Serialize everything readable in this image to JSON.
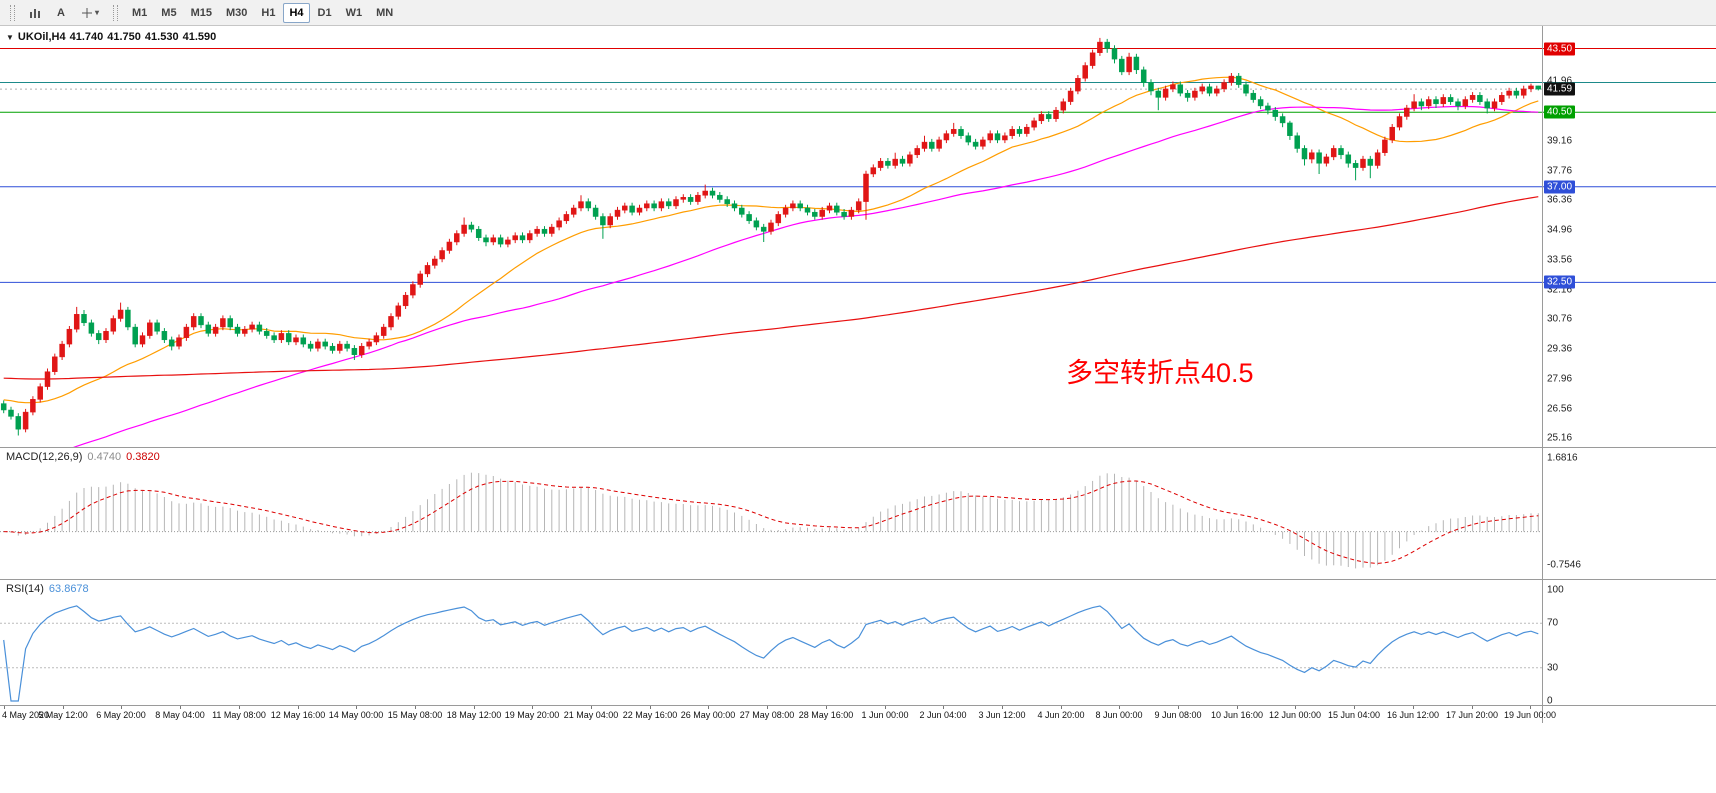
{
  "toolbar": {
    "text_tool_label": "A",
    "timeframes": [
      "M1",
      "M5",
      "M15",
      "M30",
      "H1",
      "H4",
      "D1",
      "W1",
      "MN"
    ],
    "active_timeframe": "H4"
  },
  "quote": {
    "symbol": "UKOil,H4",
    "open": "41.740",
    "high": "41.750",
    "low": "41.530",
    "close": "41.590"
  },
  "annotation": {
    "text": "多空转折点40.5",
    "color": "#ff0000"
  },
  "indicators": {
    "macd": {
      "label": "MACD(12,26,9)",
      "main_value": "0.4740",
      "signal_value": "0.3820",
      "axis_labels": [
        "1.6816",
        "-0.7546"
      ]
    },
    "rsi": {
      "label": "RSI(14)",
      "value": "63.8678",
      "axis_labels": [
        "100",
        "70",
        "30",
        "0"
      ],
      "levels": [
        70,
        30
      ]
    }
  },
  "price_axis": {
    "labels": [
      "41.96",
      "40.56",
      "39.16",
      "37.76",
      "36.36",
      "34.96",
      "33.56",
      "32.16",
      "30.76",
      "29.36",
      "27.96",
      "26.56",
      "25.16"
    ],
    "current_price_tag": {
      "text": "41.59",
      "bg": "#111111"
    }
  },
  "hlines": [
    {
      "price": 43.5,
      "color": "#e00000",
      "tag": "43.50"
    },
    {
      "price": 41.9,
      "color": "#1d8a8a",
      "tag": ""
    },
    {
      "price": 40.5,
      "color": "#00a000",
      "tag": "40.50"
    },
    {
      "price": 37.0,
      "color": "#2f4fd8",
      "tag": "37.00"
    },
    {
      "price": 32.5,
      "color": "#2f4fd8",
      "tag": "32.50"
    }
  ],
  "time_axis": {
    "labels": [
      "4 May 2020",
      "5 May 12:00",
      "6 May 20:00",
      "8 May 04:00",
      "11 May 08:00",
      "12 May 16:00",
      "14 May 00:00",
      "15 May 08:00",
      "18 May 12:00",
      "19 May 20:00",
      "21 May 04:00",
      "22 May 16:00",
      "26 May 00:00",
      "27 May 08:00",
      "28 May 16:00",
      "1 Jun 00:00",
      "2 Jun 04:00",
      "3 Jun 12:00",
      "4 Jun 20:00",
      "8 Jun 00:00",
      "9 Jun 08:00",
      "10 Jun 16:00",
      "12 Jun 00:00",
      "15 Jun 04:00",
      "16 Jun 12:00",
      "17 Jun 20:00",
      "19 Jun 00:00"
    ]
  },
  "chart_data": {
    "type": "candlestick",
    "symbol": "UKOil",
    "timeframe": "H4",
    "price_range": [
      24.9,
      43.9
    ],
    "colors": {
      "up": "#e01616",
      "down": "#00a050"
    },
    "moving_averages": [
      {
        "name": "fast-orange",
        "period": 21,
        "seed": 27,
        "color": "#ff9d00"
      },
      {
        "name": "mid-magenta",
        "period": 55,
        "seed": 24,
        "color": "#ff00ff"
      },
      {
        "name": "slow-red",
        "period": 200,
        "seed": 28,
        "color": "#e81010"
      }
    ],
    "macd": {
      "fast": 12,
      "slow": 26,
      "signal": 9,
      "range": [
        -0.9,
        1.75
      ]
    },
    "rsi": {
      "period": 14,
      "range": [
        0,
        100
      ]
    },
    "candles": [
      [
        26.8,
        26.95,
        26.35,
        26.5
      ],
      [
        26.5,
        26.65,
        26.05,
        26.2
      ],
      [
        26.2,
        26.35,
        25.3,
        25.6
      ],
      [
        25.6,
        26.55,
        25.45,
        26.4
      ],
      [
        26.4,
        27.15,
        26.25,
        27.0
      ],
      [
        27.0,
        27.75,
        26.85,
        27.6
      ],
      [
        27.6,
        28.45,
        27.45,
        28.3
      ],
      [
        28.3,
        29.15,
        28.15,
        29.0
      ],
      [
        29.0,
        29.75,
        28.85,
        29.6
      ],
      [
        29.6,
        30.45,
        29.45,
        30.3
      ],
      [
        30.3,
        31.35,
        30.15,
        31.0
      ],
      [
        31.0,
        31.2,
        30.45,
        30.6
      ],
      [
        30.6,
        30.75,
        29.95,
        30.1
      ],
      [
        30.1,
        30.25,
        29.6,
        29.8
      ],
      [
        29.8,
        30.35,
        29.65,
        30.2
      ],
      [
        30.2,
        30.95,
        30.05,
        30.8
      ],
      [
        30.8,
        31.55,
        30.65,
        31.2
      ],
      [
        31.2,
        31.35,
        30.25,
        30.4
      ],
      [
        30.4,
        30.55,
        29.45,
        29.6
      ],
      [
        29.6,
        30.15,
        29.45,
        30.0
      ],
      [
        30.0,
        30.75,
        29.85,
        30.6
      ],
      [
        30.6,
        30.75,
        30.05,
        30.2
      ],
      [
        30.2,
        30.35,
        29.65,
        29.8
      ],
      [
        29.8,
        29.95,
        29.3,
        29.5
      ],
      [
        29.5,
        30.05,
        29.35,
        29.9
      ],
      [
        29.9,
        30.55,
        29.75,
        30.4
      ],
      [
        30.4,
        31.05,
        30.25,
        30.9
      ],
      [
        30.9,
        31.05,
        30.35,
        30.5
      ],
      [
        30.5,
        30.65,
        29.95,
        30.1
      ],
      [
        30.1,
        30.55,
        29.95,
        30.4
      ],
      [
        30.4,
        30.95,
        30.25,
        30.8
      ],
      [
        30.8,
        30.95,
        30.25,
        30.4
      ],
      [
        30.4,
        30.55,
        29.95,
        30.1
      ],
      [
        30.1,
        30.45,
        29.95,
        30.3
      ],
      [
        30.3,
        30.65,
        30.15,
        30.5
      ],
      [
        30.5,
        30.65,
        30.05,
        30.2
      ],
      [
        30.2,
        30.35,
        29.85,
        30.0
      ],
      [
        30.0,
        30.15,
        29.65,
        29.8
      ],
      [
        29.8,
        30.25,
        29.65,
        30.1
      ],
      [
        30.1,
        30.25,
        29.55,
        29.7
      ],
      [
        29.7,
        30.05,
        29.55,
        29.9
      ],
      [
        29.9,
        30.05,
        29.45,
        29.6
      ],
      [
        29.6,
        29.75,
        29.25,
        29.4
      ],
      [
        29.4,
        29.85,
        29.25,
        29.7
      ],
      [
        29.7,
        29.85,
        29.35,
        29.5
      ],
      [
        29.5,
        29.65,
        29.15,
        29.3
      ],
      [
        29.3,
        29.75,
        29.15,
        29.6
      ],
      [
        29.6,
        29.75,
        29.25,
        29.4
      ],
      [
        29.4,
        29.55,
        28.85,
        29.1
      ],
      [
        29.1,
        29.65,
        28.95,
        29.5
      ],
      [
        29.5,
        29.85,
        29.35,
        29.7
      ],
      [
        29.7,
        30.15,
        29.55,
        30.0
      ],
      [
        30.0,
        30.55,
        29.85,
        30.4
      ],
      [
        30.4,
        31.05,
        30.25,
        30.9
      ],
      [
        30.9,
        31.55,
        30.75,
        31.4
      ],
      [
        31.4,
        32.05,
        31.25,
        31.9
      ],
      [
        31.9,
        32.55,
        31.75,
        32.4
      ],
      [
        32.4,
        33.05,
        32.25,
        32.9
      ],
      [
        32.9,
        33.45,
        32.75,
        33.3
      ],
      [
        33.3,
        33.75,
        33.15,
        33.6
      ],
      [
        33.6,
        34.15,
        33.45,
        34.0
      ],
      [
        34.0,
        34.55,
        33.85,
        34.4
      ],
      [
        34.4,
        34.95,
        34.25,
        34.8
      ],
      [
        34.8,
        35.55,
        34.65,
        35.2
      ],
      [
        35.2,
        35.35,
        34.85,
        35.0
      ],
      [
        35.0,
        35.15,
        34.45,
        34.6
      ],
      [
        34.6,
        34.75,
        34.2,
        34.4
      ],
      [
        34.4,
        34.75,
        34.25,
        34.6
      ],
      [
        34.6,
        34.75,
        34.15,
        34.3
      ],
      [
        34.3,
        34.65,
        34.15,
        34.5
      ],
      [
        34.5,
        34.85,
        34.35,
        34.7
      ],
      [
        34.7,
        34.85,
        34.35,
        34.5
      ],
      [
        34.5,
        34.95,
        34.35,
        34.8
      ],
      [
        34.8,
        35.15,
        34.65,
        35.0
      ],
      [
        35.0,
        35.15,
        34.65,
        34.8
      ],
      [
        34.8,
        35.25,
        34.65,
        35.1
      ],
      [
        35.1,
        35.55,
        34.95,
        35.4
      ],
      [
        35.4,
        35.85,
        35.25,
        35.7
      ],
      [
        35.7,
        36.15,
        35.55,
        36.0
      ],
      [
        36.0,
        36.6,
        35.85,
        36.3
      ],
      [
        36.3,
        36.45,
        35.85,
        36.0
      ],
      [
        36.0,
        36.15,
        35.45,
        35.6
      ],
      [
        35.6,
        35.75,
        34.55,
        35.2
      ],
      [
        35.2,
        35.75,
        35.05,
        35.6
      ],
      [
        35.6,
        36.05,
        35.45,
        35.9
      ],
      [
        35.9,
        36.25,
        35.75,
        36.1
      ],
      [
        36.1,
        36.25,
        35.65,
        35.8
      ],
      [
        35.8,
        36.15,
        35.65,
        36.0
      ],
      [
        36.0,
        36.35,
        35.85,
        36.2
      ],
      [
        36.2,
        36.35,
        35.85,
        36.0
      ],
      [
        36.0,
        36.45,
        35.85,
        36.3
      ],
      [
        36.3,
        36.45,
        35.95,
        36.1
      ],
      [
        36.1,
        36.55,
        35.95,
        36.4
      ],
      [
        36.4,
        36.65,
        36.25,
        36.5
      ],
      [
        36.5,
        36.65,
        36.15,
        36.3
      ],
      [
        36.3,
        36.75,
        36.15,
        36.6
      ],
      [
        36.6,
        37.1,
        36.45,
        36.8
      ],
      [
        36.8,
        36.95,
        36.45,
        36.6
      ],
      [
        36.6,
        36.75,
        36.25,
        36.4
      ],
      [
        36.4,
        36.55,
        36.05,
        36.2
      ],
      [
        36.2,
        36.35,
        35.85,
        36.0
      ],
      [
        36.0,
        36.15,
        35.55,
        35.7
      ],
      [
        35.7,
        35.85,
        35.25,
        35.4
      ],
      [
        35.4,
        35.55,
        34.95,
        35.1
      ],
      [
        35.1,
        35.25,
        34.4,
        34.9
      ],
      [
        34.9,
        35.45,
        34.75,
        35.3
      ],
      [
        35.3,
        35.85,
        35.15,
        35.7
      ],
      [
        35.7,
        36.15,
        35.55,
        36.0
      ],
      [
        36.0,
        36.35,
        35.85,
        36.2
      ],
      [
        36.2,
        36.35,
        35.85,
        36.0
      ],
      [
        36.0,
        36.15,
        35.65,
        35.8
      ],
      [
        35.8,
        35.95,
        35.45,
        35.6
      ],
      [
        35.6,
        36.05,
        35.45,
        35.9
      ],
      [
        35.9,
        36.25,
        35.75,
        36.1
      ],
      [
        36.1,
        36.25,
        35.65,
        35.8
      ],
      [
        35.8,
        35.95,
        35.45,
        35.6
      ],
      [
        35.6,
        36.05,
        35.45,
        35.9
      ],
      [
        35.9,
        36.45,
        35.75,
        36.3
      ],
      [
        36.3,
        37.75,
        35.45,
        37.6
      ],
      [
        37.6,
        38.05,
        37.45,
        37.9
      ],
      [
        37.9,
        38.35,
        37.75,
        38.2
      ],
      [
        38.2,
        38.35,
        37.85,
        38.0
      ],
      [
        38.0,
        38.6,
        37.85,
        38.3
      ],
      [
        38.3,
        38.45,
        37.95,
        38.1
      ],
      [
        38.1,
        38.65,
        37.95,
        38.5
      ],
      [
        38.5,
        38.95,
        38.35,
        38.8
      ],
      [
        38.8,
        39.4,
        38.65,
        39.1
      ],
      [
        39.1,
        39.25,
        38.65,
        38.8
      ],
      [
        38.8,
        39.35,
        38.65,
        39.2
      ],
      [
        39.2,
        39.65,
        39.05,
        39.5
      ],
      [
        39.5,
        40.0,
        39.35,
        39.7
      ],
      [
        39.7,
        39.85,
        39.25,
        39.4
      ],
      [
        39.4,
        39.55,
        38.95,
        39.1
      ],
      [
        39.1,
        39.25,
        38.75,
        38.9
      ],
      [
        38.9,
        39.35,
        38.75,
        39.2
      ],
      [
        39.2,
        39.65,
        39.05,
        39.5
      ],
      [
        39.5,
        39.65,
        39.05,
        39.2
      ],
      [
        39.2,
        39.55,
        39.05,
        39.4
      ],
      [
        39.4,
        39.85,
        39.25,
        39.7
      ],
      [
        39.7,
        39.85,
        39.35,
        39.5
      ],
      [
        39.5,
        39.95,
        39.35,
        39.8
      ],
      [
        39.8,
        40.25,
        39.65,
        40.1
      ],
      [
        40.1,
        40.55,
        39.95,
        40.4
      ],
      [
        40.4,
        40.55,
        40.05,
        40.2
      ],
      [
        40.2,
        40.75,
        40.05,
        40.6
      ],
      [
        40.6,
        41.15,
        40.45,
        41.0
      ],
      [
        41.0,
        41.65,
        40.85,
        41.5
      ],
      [
        41.5,
        42.25,
        41.35,
        42.1
      ],
      [
        42.1,
        42.85,
        41.95,
        42.7
      ],
      [
        42.7,
        43.45,
        42.55,
        43.3
      ],
      [
        43.3,
        44.0,
        43.15,
        43.8
      ],
      [
        43.8,
        43.95,
        43.3,
        43.5
      ],
      [
        43.5,
        43.65,
        42.8,
        43.0
      ],
      [
        43.0,
        43.15,
        42.25,
        42.4
      ],
      [
        42.4,
        43.3,
        42.25,
        43.1
      ],
      [
        43.1,
        43.25,
        42.3,
        42.5
      ],
      [
        42.5,
        42.65,
        41.7,
        41.9
      ],
      [
        41.9,
        42.05,
        41.3,
        41.5
      ],
      [
        41.5,
        41.65,
        40.6,
        41.2
      ],
      [
        41.2,
        41.75,
        41.05,
        41.6
      ],
      [
        41.6,
        41.95,
        41.45,
        41.8
      ],
      [
        41.8,
        41.95,
        41.25,
        41.4
      ],
      [
        41.4,
        41.55,
        41.0,
        41.2
      ],
      [
        41.2,
        41.65,
        41.05,
        41.5
      ],
      [
        41.5,
        41.85,
        41.35,
        41.7
      ],
      [
        41.7,
        41.85,
        41.25,
        41.4
      ],
      [
        41.4,
        41.75,
        41.25,
        41.6
      ],
      [
        41.6,
        42.05,
        41.45,
        41.9
      ],
      [
        41.9,
        42.35,
        41.75,
        42.2
      ],
      [
        42.2,
        42.35,
        41.65,
        41.8
      ],
      [
        41.8,
        41.95,
        41.25,
        41.4
      ],
      [
        41.4,
        41.55,
        40.95,
        41.1
      ],
      [
        41.1,
        41.25,
        40.65,
        40.8
      ],
      [
        40.8,
        40.95,
        40.4,
        40.6
      ],
      [
        40.6,
        40.75,
        40.1,
        40.3
      ],
      [
        40.3,
        40.45,
        39.8,
        40.0
      ],
      [
        40.0,
        40.1,
        39.2,
        39.4
      ],
      [
        39.4,
        39.55,
        38.6,
        38.8
      ],
      [
        38.8,
        38.95,
        38.0,
        38.3
      ],
      [
        38.3,
        38.75,
        38.1,
        38.6
      ],
      [
        38.6,
        38.75,
        37.6,
        38.1
      ],
      [
        38.1,
        38.55,
        37.95,
        38.4
      ],
      [
        38.4,
        38.95,
        38.25,
        38.8
      ],
      [
        38.8,
        38.95,
        38.3,
        38.5
      ],
      [
        38.5,
        38.65,
        37.9,
        38.1
      ],
      [
        38.1,
        38.25,
        37.3,
        37.9
      ],
      [
        37.9,
        38.45,
        37.75,
        38.3
      ],
      [
        38.3,
        38.45,
        37.4,
        38.0
      ],
      [
        38.0,
        38.75,
        37.85,
        38.6
      ],
      [
        38.6,
        39.35,
        38.45,
        39.2
      ],
      [
        39.2,
        39.95,
        39.05,
        39.8
      ],
      [
        39.8,
        40.45,
        39.65,
        40.3
      ],
      [
        40.3,
        40.85,
        40.15,
        40.7
      ],
      [
        40.7,
        41.35,
        40.55,
        41.0
      ],
      [
        41.0,
        41.15,
        40.6,
        40.8
      ],
      [
        40.8,
        41.25,
        40.65,
        41.1
      ],
      [
        41.1,
        41.25,
        40.7,
        40.9
      ],
      [
        40.9,
        41.35,
        40.75,
        41.2
      ],
      [
        41.2,
        41.35,
        40.85,
        41.0
      ],
      [
        41.0,
        41.15,
        40.6,
        40.8
      ],
      [
        40.8,
        41.25,
        40.65,
        41.1
      ],
      [
        41.1,
        41.45,
        40.95,
        41.3
      ],
      [
        41.3,
        41.45,
        40.85,
        41.0
      ],
      [
        41.0,
        41.15,
        40.45,
        40.7
      ],
      [
        40.7,
        41.15,
        40.55,
        41.0
      ],
      [
        41.0,
        41.45,
        40.85,
        41.3
      ],
      [
        41.3,
        41.65,
        41.15,
        41.5
      ],
      [
        41.5,
        41.65,
        41.15,
        41.3
      ],
      [
        41.3,
        41.75,
        41.15,
        41.6
      ],
      [
        41.6,
        41.85,
        41.45,
        41.74
      ],
      [
        41.74,
        41.75,
        41.53,
        41.59
      ]
    ]
  }
}
